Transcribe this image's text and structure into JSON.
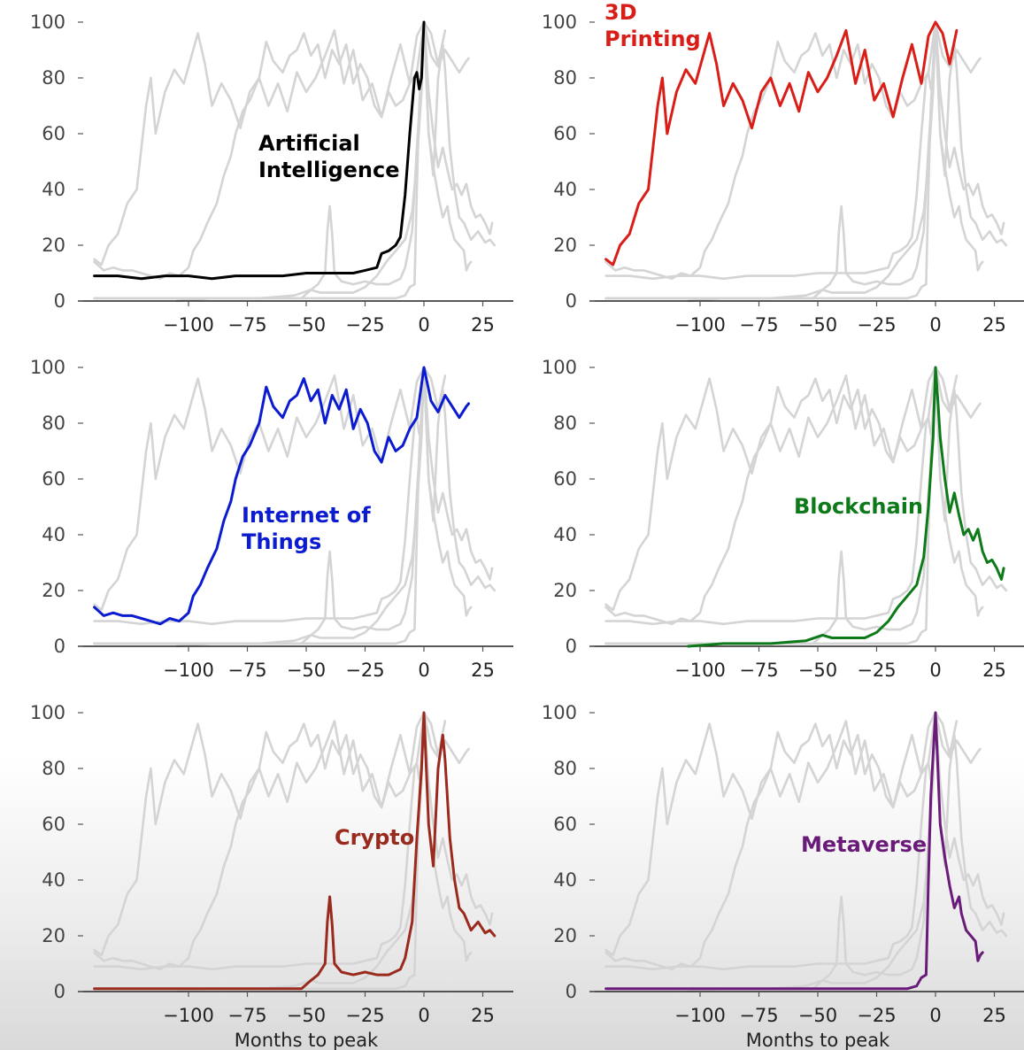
{
  "chart_data": [
    {
      "type": "line",
      "panel": "top-left",
      "highlight": "Artificial Intelligence",
      "label_lines": [
        "Artificial",
        "Intelligence"
      ],
      "color": "#000000",
      "xlabel": "",
      "ylabel": "",
      "x_ticks": [
        -100,
        -75,
        -50,
        -25,
        0,
        25
      ],
      "y_ticks": [
        0,
        20,
        40,
        60,
        80,
        100
      ],
      "xlim": [
        -140,
        33
      ],
      "ylim": [
        0,
        100
      ],
      "points": [
        [
          -140,
          9
        ],
        [
          -130,
          9
        ],
        [
          -120,
          8
        ],
        [
          -110,
          9
        ],
        [
          -100,
          9
        ],
        [
          -90,
          8
        ],
        [
          -80,
          9
        ],
        [
          -70,
          9
        ],
        [
          -60,
          9
        ],
        [
          -50,
          10
        ],
        [
          -40,
          10
        ],
        [
          -30,
          10
        ],
        [
          -25,
          11
        ],
        [
          -20,
          12
        ],
        [
          -18,
          17
        ],
        [
          -15,
          18
        ],
        [
          -12,
          20
        ],
        [
          -10,
          23
        ],
        [
          -8,
          38
        ],
        [
          -6,
          60
        ],
        [
          -4,
          80
        ],
        [
          -3,
          82
        ],
        [
          -2,
          76
        ],
        [
          -1,
          80
        ],
        [
          0,
          100
        ]
      ]
    },
    {
      "type": "line",
      "panel": "top-right",
      "highlight": "3D Printing",
      "label_lines": [
        "3D",
        "Printing"
      ],
      "color": "#d91e18",
      "xlabel": "",
      "ylabel": "",
      "x_ticks": [
        -100,
        -75,
        -50,
        -25,
        0,
        25
      ],
      "y_ticks": [
        0,
        20,
        40,
        60,
        80,
        100
      ],
      "xlim": [
        -140,
        33
      ],
      "ylim": [
        0,
        100
      ],
      "points": [
        [
          -140,
          15
        ],
        [
          -137,
          13
        ],
        [
          -134,
          20
        ],
        [
          -130,
          24
        ],
        [
          -126,
          35
        ],
        [
          -122,
          40
        ],
        [
          -118,
          70
        ],
        [
          -116,
          80
        ],
        [
          -114,
          60
        ],
        [
          -110,
          75
        ],
        [
          -106,
          83
        ],
        [
          -102,
          78
        ],
        [
          -98,
          90
        ],
        [
          -96,
          96
        ],
        [
          -93,
          85
        ],
        [
          -90,
          70
        ],
        [
          -86,
          78
        ],
        [
          -82,
          72
        ],
        [
          -78,
          62
        ],
        [
          -74,
          75
        ],
        [
          -70,
          80
        ],
        [
          -66,
          70
        ],
        [
          -62,
          78
        ],
        [
          -58,
          68
        ],
        [
          -54,
          82
        ],
        [
          -50,
          75
        ],
        [
          -46,
          80
        ],
        [
          -42,
          88
        ],
        [
          -38,
          97
        ],
        [
          -34,
          78
        ],
        [
          -30,
          90
        ],
        [
          -26,
          72
        ],
        [
          -22,
          78
        ],
        [
          -18,
          66
        ],
        [
          -14,
          80
        ],
        [
          -10,
          92
        ],
        [
          -6,
          78
        ],
        [
          -3,
          95
        ],
        [
          0,
          100
        ],
        [
          3,
          96
        ],
        [
          6,
          85
        ],
        [
          9,
          97
        ]
      ]
    },
    {
      "type": "line",
      "panel": "middle-left",
      "highlight": "Internet of Things",
      "label_lines": [
        "Internet of",
        "Things"
      ],
      "color": "#0b1bd0",
      "xlabel": "",
      "ylabel": "",
      "x_ticks": [
        -100,
        -75,
        -50,
        -25,
        0,
        25
      ],
      "y_ticks": [
        0,
        20,
        40,
        60,
        80,
        100
      ],
      "xlim": [
        -140,
        33
      ],
      "ylim": [
        0,
        100
      ],
      "points": [
        [
          -140,
          14
        ],
        [
          -136,
          11
        ],
        [
          -132,
          12
        ],
        [
          -128,
          11
        ],
        [
          -124,
          11
        ],
        [
          -120,
          10
        ],
        [
          -116,
          9
        ],
        [
          -112,
          8
        ],
        [
          -108,
          10
        ],
        [
          -104,
          9
        ],
        [
          -100,
          12
        ],
        [
          -98,
          18
        ],
        [
          -95,
          22
        ],
        [
          -92,
          28
        ],
        [
          -88,
          35
        ],
        [
          -85,
          45
        ],
        [
          -82,
          52
        ],
        [
          -80,
          60
        ],
        [
          -77,
          68
        ],
        [
          -74,
          72
        ],
        [
          -70,
          80
        ],
        [
          -67,
          93
        ],
        [
          -64,
          86
        ],
        [
          -60,
          82
        ],
        [
          -57,
          88
        ],
        [
          -54,
          90
        ],
        [
          -51,
          96
        ],
        [
          -48,
          88
        ],
        [
          -45,
          92
        ],
        [
          -42,
          80
        ],
        [
          -39,
          90
        ],
        [
          -36,
          85
        ],
        [
          -33,
          92
        ],
        [
          -30,
          78
        ],
        [
          -27,
          85
        ],
        [
          -24,
          80
        ],
        [
          -21,
          70
        ],
        [
          -18,
          66
        ],
        [
          -15,
          75
        ],
        [
          -12,
          70
        ],
        [
          -9,
          72
        ],
        [
          -6,
          78
        ],
        [
          -3,
          82
        ],
        [
          0,
          100
        ],
        [
          3,
          88
        ],
        [
          6,
          84
        ],
        [
          9,
          90
        ],
        [
          12,
          86
        ],
        [
          15,
          82
        ],
        [
          18,
          86
        ],
        [
          19,
          87
        ]
      ]
    },
    {
      "type": "line",
      "panel": "middle-right",
      "highlight": "Blockchain",
      "label_lines": [
        "Blockchain"
      ],
      "color": "#0d7a1a",
      "xlabel": "",
      "ylabel": "",
      "x_ticks": [
        -100,
        -75,
        -50,
        -25,
        0,
        25
      ],
      "y_ticks": [
        0,
        20,
        40,
        60,
        80,
        100
      ],
      "xlim": [
        -140,
        33
      ],
      "ylim": [
        0,
        100
      ],
      "points": [
        [
          -105,
          0
        ],
        [
          -90,
          1
        ],
        [
          -70,
          1
        ],
        [
          -55,
          2
        ],
        [
          -48,
          4
        ],
        [
          -44,
          3
        ],
        [
          -40,
          3
        ],
        [
          -30,
          3
        ],
        [
          -25,
          5
        ],
        [
          -20,
          9
        ],
        [
          -16,
          14
        ],
        [
          -12,
          18
        ],
        [
          -8,
          22
        ],
        [
          -5,
          32
        ],
        [
          -3,
          50
        ],
        [
          -1,
          75
        ],
        [
          0,
          100
        ],
        [
          1,
          88
        ],
        [
          2,
          75
        ],
        [
          4,
          60
        ],
        [
          6,
          48
        ],
        [
          8,
          55
        ],
        [
          10,
          47
        ],
        [
          12,
          40
        ],
        [
          14,
          42
        ],
        [
          16,
          38
        ],
        [
          18,
          42
        ],
        [
          20,
          34
        ],
        [
          22,
          30
        ],
        [
          24,
          31
        ],
        [
          26,
          28
        ],
        [
          28,
          24
        ],
        [
          29,
          28
        ]
      ]
    },
    {
      "type": "line",
      "panel": "bottom-left",
      "highlight": "Crypto",
      "label_lines": [
        "Crypto"
      ],
      "color": "#9a2a1e",
      "xlabel": "Months to peak",
      "ylabel": "",
      "x_ticks": [
        -100,
        -75,
        -50,
        -25,
        0,
        25
      ],
      "y_ticks": [
        0,
        20,
        40,
        60,
        80,
        100
      ],
      "xlim": [
        -140,
        33
      ],
      "ylim": [
        0,
        100
      ],
      "points": [
        [
          -140,
          1
        ],
        [
          -120,
          1
        ],
        [
          -100,
          1
        ],
        [
          -80,
          1
        ],
        [
          -60,
          1
        ],
        [
          -52,
          1
        ],
        [
          -48,
          4
        ],
        [
          -45,
          6
        ],
        [
          -42,
          10
        ],
        [
          -41,
          25
        ],
        [
          -40,
          34
        ],
        [
          -39,
          24
        ],
        [
          -38,
          10
        ],
        [
          -35,
          7
        ],
        [
          -30,
          6
        ],
        [
          -25,
          7
        ],
        [
          -20,
          6
        ],
        [
          -15,
          6
        ],
        [
          -10,
          8
        ],
        [
          -8,
          12
        ],
        [
          -5,
          25
        ],
        [
          -3,
          55
        ],
        [
          -1,
          80
        ],
        [
          0,
          100
        ],
        [
          2,
          60
        ],
        [
          4,
          45
        ],
        [
          6,
          80
        ],
        [
          8,
          92
        ],
        [
          9,
          83
        ],
        [
          11,
          55
        ],
        [
          13,
          40
        ],
        [
          15,
          30
        ],
        [
          17,
          28
        ],
        [
          20,
          22
        ],
        [
          23,
          25
        ],
        [
          26,
          21
        ],
        [
          28,
          22
        ],
        [
          30,
          20
        ]
      ]
    },
    {
      "type": "line",
      "panel": "bottom-right",
      "highlight": "Metaverse",
      "label_lines": [
        "Metaverse"
      ],
      "color": "#6a1b7a",
      "xlabel": "Months to peak",
      "ylabel": "",
      "x_ticks": [
        -100,
        -75,
        -50,
        -25,
        0,
        25
      ],
      "y_ticks": [
        0,
        20,
        40,
        60,
        80,
        100
      ],
      "xlim": [
        -140,
        33
      ],
      "ylim": [
        0,
        100
      ],
      "points": [
        [
          -140,
          1
        ],
        [
          -100,
          1
        ],
        [
          -60,
          1
        ],
        [
          -40,
          1
        ],
        [
          -20,
          1
        ],
        [
          -12,
          1
        ],
        [
          -8,
          2
        ],
        [
          -6,
          5
        ],
        [
          -4,
          6
        ],
        [
          -3,
          40
        ],
        [
          -2,
          70
        ],
        [
          -1,
          85
        ],
        [
          0,
          100
        ],
        [
          1,
          80
        ],
        [
          2,
          60
        ],
        [
          4,
          48
        ],
        [
          6,
          38
        ],
        [
          8,
          30
        ],
        [
          10,
          34
        ],
        [
          11,
          28
        ],
        [
          13,
          22
        ],
        [
          15,
          20
        ],
        [
          17,
          18
        ],
        [
          18,
          11
        ],
        [
          19,
          13
        ],
        [
          20,
          14
        ]
      ]
    }
  ]
}
